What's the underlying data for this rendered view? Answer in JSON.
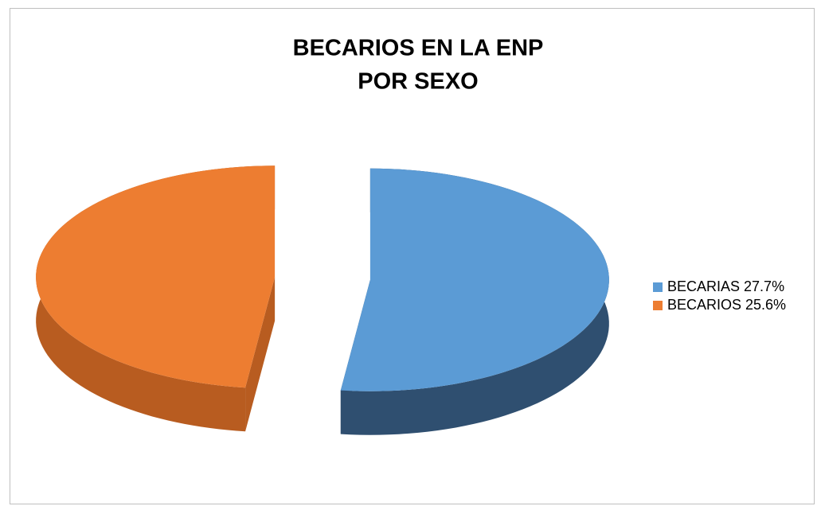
{
  "chart_data": {
    "type": "pie3d",
    "title": [
      "BECARIOS EN LA ENP",
      "POR SEXO"
    ],
    "categories": [
      "BECARIAS 27.7%",
      "BECARIOS 25.6%"
    ],
    "values": [
      27.7,
      25.6
    ],
    "colors": [
      "#5b9bd5",
      "#ed7d31"
    ],
    "side_colors": [
      "#2f4f70",
      "#b85c20"
    ],
    "legend": "right"
  }
}
